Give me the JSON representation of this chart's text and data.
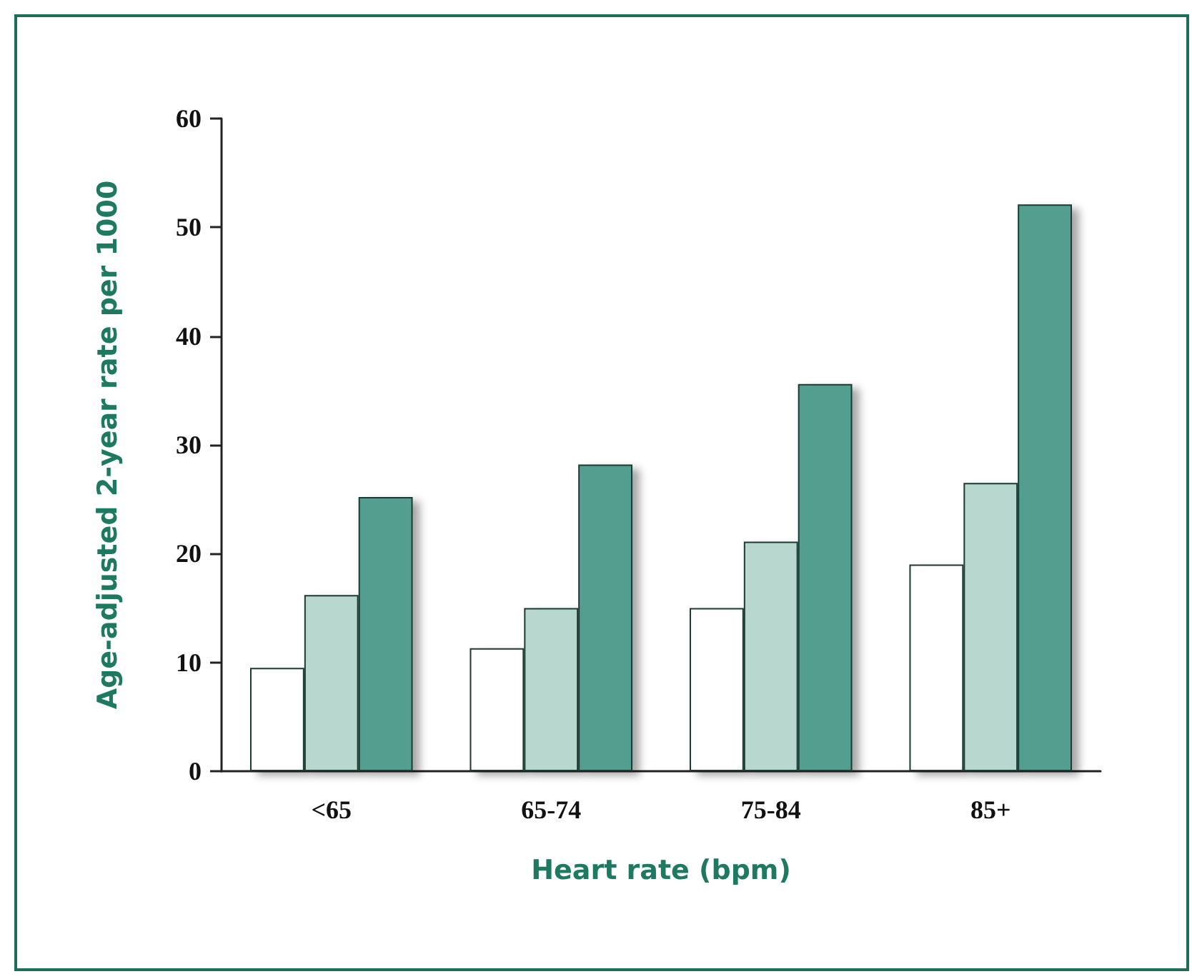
{
  "chart_data": {
    "type": "bar",
    "xlabel": "Heart rate (bpm)",
    "ylabel": "Age-adjusted 2-year rate per 1000",
    "categories": [
      "<65",
      "65-74",
      "75-84",
      "85+"
    ],
    "series": [
      {
        "color": "#ffffff",
        "values": [
          9.5,
          11.3,
          15.0,
          19.0
        ]
      },
      {
        "color": "#b8d7cf",
        "values": [
          16.2,
          15.0,
          21.1,
          26.5
        ]
      },
      {
        "color": "#529e8e",
        "values": [
          25.2,
          28.2,
          35.6,
          52.1
        ]
      }
    ],
    "ylim": [
      0,
      60
    ],
    "yticks": [
      0,
      10,
      20,
      30,
      40,
      50,
      60
    ],
    "grid": false
  }
}
